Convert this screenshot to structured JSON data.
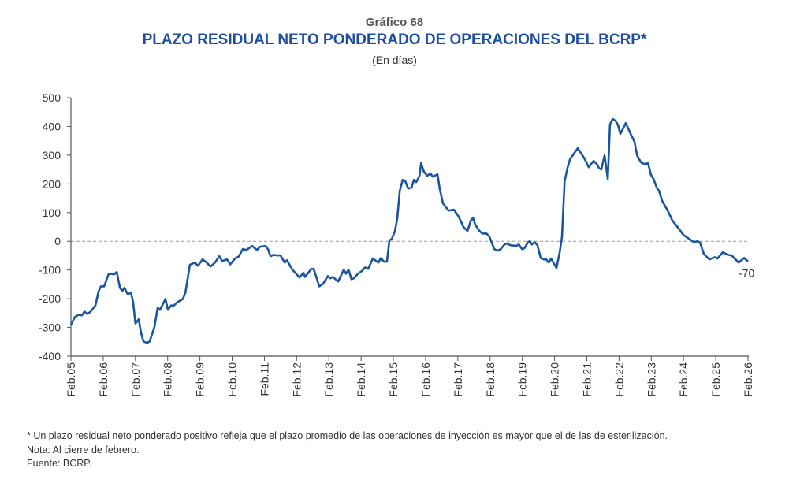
{
  "header": {
    "kicker": "Gráfico 68",
    "title": "PLAZO RESIDUAL NETO PONDERADO DE OPERACIONES DEL BCRP*",
    "subtitle": "(En días)"
  },
  "chart_data": {
    "type": "line",
    "title": "PLAZO RESIDUAL NETO PONDERADO DE OPERACIONES DEL BCRP*",
    "ylabel": "En días",
    "xlabel": "",
    "ylim": [
      -400,
      500
    ],
    "yticks": [
      500,
      400,
      300,
      200,
      100,
      0,
      -100,
      -200,
      -300,
      -400
    ],
    "xticks": [
      "Feb.05",
      "Feb.06",
      "Feb.07",
      "Feb.08",
      "Feb.09",
      "Feb.10",
      "Feb.11",
      "Feb.12",
      "Feb.13",
      "Feb.14",
      "Feb.15",
      "Feb.16",
      "Feb.17",
      "Feb.18",
      "Feb.19",
      "Feb.20",
      "Feb.21",
      "Feb.22",
      "Feb.23",
      "Feb.24",
      "Feb.25",
      "Feb.26"
    ],
    "x_unit": "years since Feb.05",
    "zero_line": "dashed",
    "end_label": "-70",
    "line_color": "#1a56a0",
    "series": [
      {
        "name": "Plazo residual neto ponderado",
        "points": [
          [
            0,
            -291
          ],
          [
            0.12,
            -264
          ],
          [
            0.24,
            -256
          ],
          [
            0.34,
            -258
          ],
          [
            0.42,
            -245
          ],
          [
            0.51,
            -253
          ],
          [
            0.61,
            -245
          ],
          [
            0.76,
            -223
          ],
          [
            0.86,
            -173
          ],
          [
            0.93,
            -157
          ],
          [
            1.03,
            -157
          ],
          [
            1.17,
            -113
          ],
          [
            1.34,
            -115
          ],
          [
            1.42,
            -107
          ],
          [
            1.52,
            -162
          ],
          [
            1.59,
            -173
          ],
          [
            1.66,
            -162
          ],
          [
            1.76,
            -184
          ],
          [
            1.86,
            -179
          ],
          [
            1.93,
            -212
          ],
          [
            2.0,
            -286
          ],
          [
            2.1,
            -272
          ],
          [
            2.18,
            -321
          ],
          [
            2.25,
            -349
          ],
          [
            2.37,
            -354
          ],
          [
            2.44,
            -349
          ],
          [
            2.59,
            -299
          ],
          [
            2.69,
            -231
          ],
          [
            2.76,
            -239
          ],
          [
            2.93,
            -201
          ],
          [
            3.01,
            -239
          ],
          [
            3.11,
            -223
          ],
          [
            3.18,
            -225
          ],
          [
            3.3,
            -212
          ],
          [
            3.47,
            -201
          ],
          [
            3.55,
            -179
          ],
          [
            3.69,
            -82
          ],
          [
            3.84,
            -74
          ],
          [
            3.94,
            -85
          ],
          [
            4.08,
            -63
          ],
          [
            4.21,
            -74
          ],
          [
            4.33,
            -88
          ],
          [
            4.47,
            -74
          ],
          [
            4.6,
            -52
          ],
          [
            4.69,
            -69
          ],
          [
            4.84,
            -63
          ],
          [
            4.94,
            -80
          ],
          [
            5.09,
            -60
          ],
          [
            5.21,
            -52
          ],
          [
            5.33,
            -27
          ],
          [
            5.45,
            -30
          ],
          [
            5.62,
            -16
          ],
          [
            5.77,
            -30
          ],
          [
            5.87,
            -19
          ],
          [
            6.04,
            -16
          ],
          [
            6.11,
            -27
          ],
          [
            6.19,
            -52
          ],
          [
            6.28,
            -47
          ],
          [
            6.38,
            -49
          ],
          [
            6.5,
            -49
          ],
          [
            6.63,
            -74
          ],
          [
            6.7,
            -66
          ],
          [
            6.87,
            -99
          ],
          [
            7.09,
            -126
          ],
          [
            7.21,
            -110
          ],
          [
            7.26,
            -124
          ],
          [
            7.46,
            -96
          ],
          [
            7.53,
            -96
          ],
          [
            7.7,
            -157
          ],
          [
            7.82,
            -148
          ],
          [
            7.97,
            -121
          ],
          [
            8.04,
            -129
          ],
          [
            8.12,
            -124
          ],
          [
            8.29,
            -140
          ],
          [
            8.46,
            -99
          ],
          [
            8.53,
            -113
          ],
          [
            8.61,
            -99
          ],
          [
            8.7,
            -132
          ],
          [
            8.78,
            -129
          ],
          [
            8.9,
            -113
          ],
          [
            9.02,
            -104
          ],
          [
            9.12,
            -91
          ],
          [
            9.22,
            -96
          ],
          [
            9.36,
            -60
          ],
          [
            9.54,
            -74
          ],
          [
            9.61,
            -58
          ],
          [
            9.71,
            -71
          ],
          [
            9.8,
            -71
          ],
          [
            9.88,
            3
          ],
          [
            9.95,
            8
          ],
          [
            10.05,
            36
          ],
          [
            10.12,
            80
          ],
          [
            10.2,
            176
          ],
          [
            10.29,
            214
          ],
          [
            10.37,
            209
          ],
          [
            10.46,
            184
          ],
          [
            10.56,
            187
          ],
          [
            10.64,
            214
          ],
          [
            10.71,
            206
          ],
          [
            10.81,
            228
          ],
          [
            10.86,
            272
          ],
          [
            10.95,
            242
          ],
          [
            11.05,
            228
          ],
          [
            11.15,
            236
          ],
          [
            11.22,
            225
          ],
          [
            11.37,
            233
          ],
          [
            11.44,
            181
          ],
          [
            11.54,
            132
          ],
          [
            11.71,
            107
          ],
          [
            11.88,
            110
          ],
          [
            12.03,
            85
          ],
          [
            12.18,
            49
          ],
          [
            12.3,
            36
          ],
          [
            12.4,
            71
          ],
          [
            12.47,
            82
          ],
          [
            12.54,
            58
          ],
          [
            12.67,
            36
          ],
          [
            12.76,
            27
          ],
          [
            12.89,
            27
          ],
          [
            12.98,
            16
          ],
          [
            13.13,
            -27
          ],
          [
            13.23,
            -33
          ],
          [
            13.33,
            -27
          ],
          [
            13.45,
            -11
          ],
          [
            13.52,
            -8
          ],
          [
            13.64,
            -14
          ],
          [
            13.81,
            -16
          ],
          [
            13.89,
            -11
          ],
          [
            13.99,
            -27
          ],
          [
            14.06,
            -25
          ],
          [
            14.18,
            -3
          ],
          [
            14.23,
            0
          ],
          [
            14.3,
            -11
          ],
          [
            14.38,
            -3
          ],
          [
            14.47,
            -14
          ],
          [
            14.57,
            -58
          ],
          [
            14.67,
            -63
          ],
          [
            14.74,
            -63
          ],
          [
            14.82,
            -74
          ],
          [
            14.89,
            -60
          ],
          [
            15.06,
            -93
          ],
          [
            15.16,
            -38
          ],
          [
            15.23,
            16
          ],
          [
            15.31,
            209
          ],
          [
            15.4,
            255
          ],
          [
            15.48,
            286
          ],
          [
            15.72,
            324
          ],
          [
            15.94,
            286
          ],
          [
            16.06,
            258
          ],
          [
            16.21,
            280
          ],
          [
            16.31,
            269
          ],
          [
            16.38,
            255
          ],
          [
            16.45,
            250
          ],
          [
            16.55,
            299
          ],
          [
            16.65,
            217
          ],
          [
            16.72,
            407
          ],
          [
            16.8,
            426
          ],
          [
            16.89,
            420
          ],
          [
            16.97,
            404
          ],
          [
            17.04,
            374
          ],
          [
            17.21,
            412
          ],
          [
            17.36,
            374
          ],
          [
            17.48,
            346
          ],
          [
            17.56,
            299
          ],
          [
            17.68,
            275
          ],
          [
            17.78,
            269
          ],
          [
            17.9,
            272
          ],
          [
            17.99,
            231
          ],
          [
            18.07,
            217
          ],
          [
            18.17,
            187
          ],
          [
            18.24,
            176
          ],
          [
            18.34,
            140
          ],
          [
            18.51,
            107
          ],
          [
            18.66,
            71
          ],
          [
            18.8,
            52
          ],
          [
            19.0,
            22
          ],
          [
            19.14,
            11
          ],
          [
            19.32,
            -3
          ],
          [
            19.44,
            0
          ],
          [
            19.51,
            -5
          ],
          [
            19.63,
            -44
          ],
          [
            19.8,
            -63
          ],
          [
            19.98,
            -55
          ],
          [
            20.05,
            -60
          ],
          [
            20.22,
            -38
          ],
          [
            20.37,
            -47
          ],
          [
            20.49,
            -49
          ],
          [
            20.71,
            -74
          ],
          [
            20.88,
            -58
          ],
          [
            21.0,
            -70
          ]
        ]
      }
    ]
  },
  "notes": {
    "footnote": "* Un plazo residual neto ponderado positivo refleja que el plazo promedio de las operaciones de inyección es mayor que el de las de esterilización.",
    "nota": "Nota: Al cierre de febrero.",
    "fuente": "Fuente: BCRP."
  }
}
